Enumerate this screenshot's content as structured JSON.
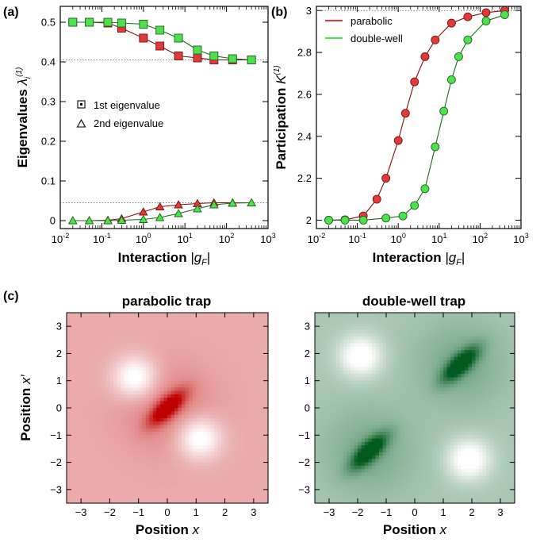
{
  "colors": {
    "parabolic": "#e03a3a",
    "double_well": "#4ee04e",
    "parabolic_dark": "#7a1010",
    "double_well_dark": "#1a6a1a"
  },
  "panels": {
    "a": {
      "label": "(a)",
      "xlabel_prefix": "Interaction ",
      "xlabel_var": "|g",
      "xlabel_sub": "F",
      "xlabel_end": "|",
      "ylabel_prefix": "Eigenvalues ",
      "ylabel_var": "λ",
      "ylabel_sub": "i",
      "ylabel_sup": "(1)",
      "legend": [
        {
          "marker": "square",
          "label": "1st eigenvalue"
        },
        {
          "marker": "triangle",
          "label": "2nd eigenvalue"
        }
      ]
    },
    "b": {
      "label": "(b)",
      "xlabel_prefix": "Interaction ",
      "xlabel_var": "|g",
      "xlabel_sub": "F",
      "xlabel_end": "|",
      "ylabel_prefix": "Participation ",
      "ylabel_var": "K",
      "ylabel_sup": "(1)",
      "legend": [
        {
          "label": "parabolic"
        },
        {
          "label": "double-well"
        }
      ]
    },
    "c": {
      "label": "(c)",
      "left_title": "parabolic trap",
      "right_title": "double-well trap",
      "xlabel_prefix": "Position ",
      "xlabel_var": "x",
      "ylabel_prefix": "Position ",
      "ylabel_var": "x′"
    }
  },
  "chart_data": [
    {
      "type": "line",
      "panel": "a",
      "xscale": "log",
      "xlim": [
        0.01,
        1000
      ],
      "ylim": [
        -0.02,
        0.54
      ],
      "x_ticks": [
        "10^-2",
        "10^-1",
        "10^0",
        "10^1",
        "10^2",
        "10^3"
      ],
      "y_ticks": [
        "0",
        "0.1",
        "0.2",
        "0.3",
        "0.4",
        "0.5"
      ],
      "reference_lines": [
        0.405,
        0.045
      ],
      "x": [
        0.02,
        0.05,
        0.14,
        0.3,
        1,
        2.5,
        7,
        20,
        50,
        140,
        400
      ],
      "series": [
        {
          "key": "parabolic",
          "eigen": "1st",
          "marker": "square",
          "values": [
            0.5,
            0.5,
            0.498,
            0.485,
            0.46,
            0.44,
            0.415,
            0.41,
            0.405,
            0.405,
            0.405
          ]
        },
        {
          "key": "double_well",
          "eigen": "1st",
          "marker": "square",
          "values": [
            0.5,
            0.5,
            0.5,
            0.498,
            0.495,
            0.48,
            0.46,
            0.43,
            0.415,
            0.408,
            0.405
          ]
        },
        {
          "key": "parabolic",
          "eigen": "2nd",
          "marker": "triangle",
          "values": [
            0,
            0,
            0.001,
            0.005,
            0.022,
            0.035,
            0.04,
            0.043,
            0.045,
            0.045,
            0.045
          ]
        },
        {
          "key": "double_well",
          "eigen": "2nd",
          "marker": "triangle",
          "values": [
            0,
            0,
            0,
            0.001,
            0.003,
            0.008,
            0.018,
            0.03,
            0.04,
            0.044,
            0.045
          ]
        }
      ]
    },
    {
      "type": "line",
      "panel": "b",
      "xscale": "log",
      "xlim": [
        0.01,
        1000
      ],
      "ylim": [
        1.96,
        3.02
      ],
      "x_ticks": [
        "10^-2",
        "10^-1",
        "10^0",
        "10^1",
        "10^2",
        "10^3"
      ],
      "y_ticks": [
        "2",
        "2.2",
        "2.4",
        "2.6",
        "2.8",
        "3"
      ],
      "reference_lines": [
        3.0
      ],
      "series": [
        {
          "key": "parabolic",
          "name": "parabolic",
          "x": [
            0.02,
            0.05,
            0.14,
            0.3,
            0.5,
            1,
            1.5,
            2.5,
            4.5,
            8,
            20,
            50,
            140,
            400
          ],
          "values": [
            2.0,
            2.002,
            2.02,
            2.1,
            2.2,
            2.38,
            2.51,
            2.66,
            2.78,
            2.86,
            2.94,
            2.97,
            2.99,
            3.0
          ]
        },
        {
          "key": "double_well",
          "name": "double-well",
          "x": [
            0.02,
            0.05,
            0.14,
            0.5,
            1.3,
            2.5,
            4.5,
            8,
            13,
            20,
            30,
            50,
            140,
            400
          ],
          "values": [
            2.0,
            2.0,
            2.0,
            2.01,
            2.02,
            2.07,
            2.15,
            2.35,
            2.52,
            2.67,
            2.78,
            2.86,
            2.95,
            2.98
          ]
        }
      ]
    },
    {
      "type": "heatmap",
      "panel": "c-left",
      "title": "parabolic trap",
      "xlim": [
        -3.5,
        3.5
      ],
      "ylim": [
        -3.5,
        3.5
      ],
      "ticks": [
        "−3",
        "−2",
        "−1",
        "0",
        "1",
        "2",
        "3"
      ],
      "colormap": "white-to-red",
      "features": [
        {
          "kind": "peak",
          "x": 0,
          "y": 0,
          "orientation": "diagonal"
        },
        {
          "kind": "hole",
          "x": -1.1,
          "y": 1.1
        },
        {
          "kind": "hole",
          "x": 1.1,
          "y": -1.1
        }
      ]
    },
    {
      "type": "heatmap",
      "panel": "c-right",
      "title": "double-well trap",
      "xlim": [
        -3.5,
        3.5
      ],
      "ylim": [
        -3.5,
        3.5
      ],
      "ticks": [
        "−3",
        "−2",
        "−1",
        "0",
        "1",
        "2",
        "3"
      ],
      "colormap": "white-to-green",
      "features": [
        {
          "kind": "peak",
          "x": -1.6,
          "y": -1.6,
          "orientation": "diagonal"
        },
        {
          "kind": "peak",
          "x": 1.6,
          "y": 1.6,
          "orientation": "diagonal"
        },
        {
          "kind": "hole",
          "x": -1.9,
          "y": 1.9
        },
        {
          "kind": "hole",
          "x": 1.9,
          "y": -1.9
        }
      ]
    }
  ]
}
